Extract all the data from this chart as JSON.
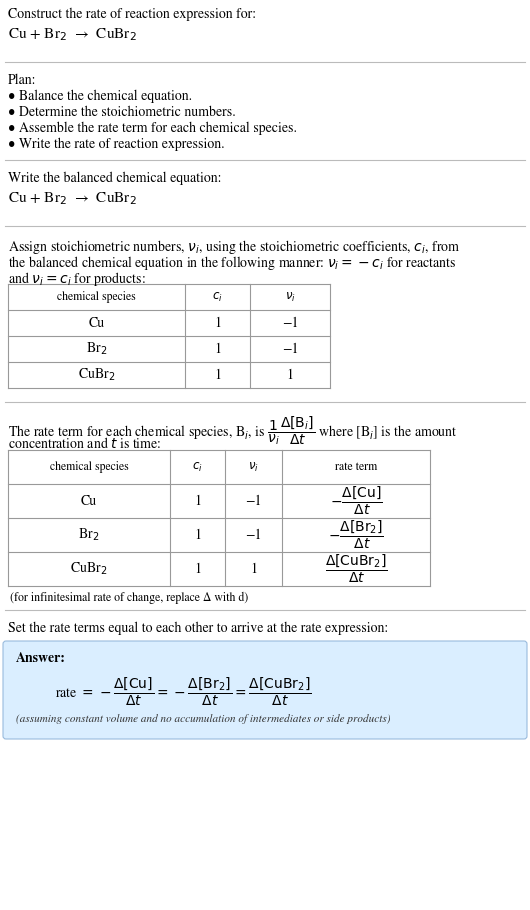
{
  "bg_color": "#ffffff",
  "title_text": "Construct the rate of reaction expression for:",
  "reaction_display": "Cu + Br$_2$  →  CuBr$_2$",
  "plan_header": "Plan:",
  "plan_items": [
    "• Balance the chemical equation.",
    "• Determine the stoichiometric numbers.",
    "• Assemble the rate term for each chemical species.",
    "• Write the rate of reaction expression."
  ],
  "balanced_header": "Write the balanced chemical equation:",
  "balanced_eq": "Cu + Br$_2$  →  CuBr$_2$",
  "stoich_line1": "Assign stoichiometric numbers, $\\nu_i$, using the stoichiometric coefficients, $c_i$, from",
  "stoich_line2": "the balanced chemical equation in the following manner: $\\nu_i = -c_i$ for reactants",
  "stoich_line3": "and $\\nu_i = c_i$ for products:",
  "table1_headers": [
    "chemical species",
    "$c_i$",
    "$\\nu_i$"
  ],
  "table1_rows": [
    [
      "Cu",
      "1",
      "−1"
    ],
    [
      "Br$_2$",
      "1",
      "−1"
    ],
    [
      "CuBr$_2$",
      "1",
      "1"
    ]
  ],
  "rate_line1": "The rate term for each chemical species, B$_i$, is $\\dfrac{1}{\\nu_i}\\dfrac{\\Delta[\\mathrm{B}_i]}{\\Delta t}$ where [B$_i$] is the amount",
  "rate_line2": "concentration and $t$ is time:",
  "table2_headers": [
    "chemical species",
    "$c_i$",
    "$\\nu_i$",
    "rate term"
  ],
  "table2_rows": [
    [
      "Cu",
      "1",
      "−1",
      "$-\\dfrac{\\Delta[\\mathrm{Cu}]}{\\Delta t}$"
    ],
    [
      "Br$_2$",
      "1",
      "−1",
      "$-\\dfrac{\\Delta[\\mathrm{Br}_2]}{\\Delta t}$"
    ],
    [
      "CuBr$_2$",
      "1",
      "1",
      "$\\dfrac{\\Delta[\\mathrm{CuBr}_2]}{\\Delta t}$"
    ]
  ],
  "infinitesimal_note": "(for infinitesimal rate of change, replace Δ with d)",
  "set_equal_text": "Set the rate terms equal to each other to arrive at the rate expression:",
  "answer_label": "Answer:",
  "answer_eq": "rate $= -\\dfrac{\\Delta[\\mathrm{Cu}]}{\\Delta t} = -\\dfrac{\\Delta[\\mathrm{Br}_2]}{\\Delta t} = \\dfrac{\\Delta[\\mathrm{CuBr}_2]}{\\Delta t}$",
  "answer_note": "(assuming constant volume and no accumulation of intermediates or side products)",
  "answer_bg": "#daeeff",
  "line_color": "#bbbbbb",
  "table_line_color": "#999999",
  "font_size": 10,
  "font_size_small": 8.5,
  "font_size_reaction": 11
}
